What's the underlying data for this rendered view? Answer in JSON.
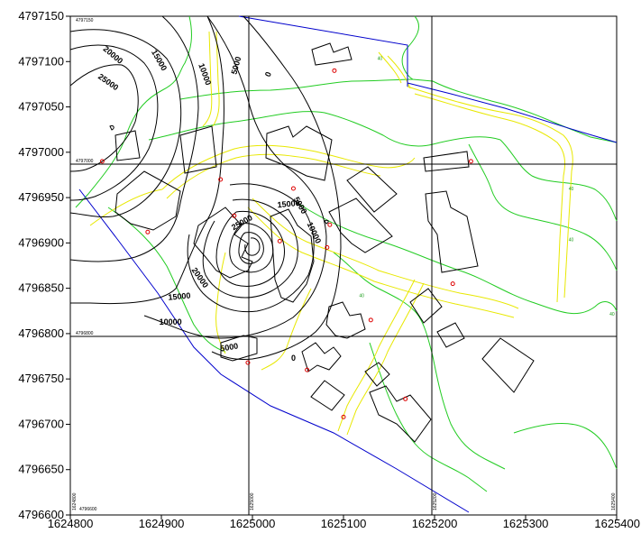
{
  "axes": {
    "y_labels": [
      "4797150",
      "4797100",
      "4797050",
      "4797000",
      "4796950",
      "4796900",
      "4796850",
      "4796800",
      "4796750",
      "4796700",
      "4796650",
      "4796600"
    ],
    "x_labels": [
      "1624800",
      "1624900",
      "1625000",
      "1625100",
      "1625200",
      "1625300",
      "1625400"
    ],
    "x_range": [
      1624800,
      1625400
    ],
    "y_range": [
      4796600,
      4797150
    ]
  },
  "grid_labels": {
    "top_left": "4797150",
    "mid_upper": "4797000",
    "mid_lower": "4796800",
    "bottom_left": "4796600",
    "vertical": [
      "1624800",
      "1625000",
      "1625200",
      "1625400"
    ]
  },
  "contour_labels": [
    {
      "text": "0",
      "x": 1625020,
      "y": 4797085,
      "rot": -70
    },
    {
      "text": "0",
      "x": 1625045,
      "y": 4796770,
      "rot": 0
    },
    {
      "text": "5000",
      "x": 1624985,
      "y": 4797095,
      "rot": -75
    },
    {
      "text": "5000",
      "x": 1625050,
      "y": 4796940,
      "rot": 60
    },
    {
      "text": "5000",
      "x": 1624975,
      "y": 4796782,
      "rot": -10
    },
    {
      "text": "10000",
      "x": 1624945,
      "y": 4797085,
      "rot": 70
    },
    {
      "text": "10000",
      "x": 1625065,
      "y": 4796910,
      "rot": 65
    },
    {
      "text": "10000",
      "x": 1624910,
      "y": 4796810,
      "rot": 0
    },
    {
      "text": "15000",
      "x": 1624895,
      "y": 4797100,
      "rot": 60
    },
    {
      "text": "15000",
      "x": 1625040,
      "y": 4796940,
      "rot": -5
    },
    {
      "text": "15000",
      "x": 1624920,
      "y": 4796838,
      "rot": -5
    },
    {
      "text": "20000",
      "x": 1624845,
      "y": 4797105,
      "rot": 40
    },
    {
      "text": "20000",
      "x": 1624940,
      "y": 4796860,
      "rot": 55
    },
    {
      "text": "25000",
      "x": 1624840,
      "y": 4797075,
      "rot": 35
    },
    {
      "text": "25000",
      "x": 1624990,
      "y": 4796920,
      "rot": -30
    }
  ],
  "green_labels": [
    {
      "text": "40",
      "x": 1625140,
      "y": 4797102
    },
    {
      "text": "40",
      "x": 1625350,
      "y": 4796958
    },
    {
      "text": "40",
      "x": 1625350,
      "y": 4796902
    },
    {
      "text": "40",
      "x": 1625395,
      "y": 4796820
    },
    {
      "text": "40",
      "x": 1625120,
      "y": 4796840
    }
  ],
  "sample_points": [
    {
      "x": 1625090,
      "y": 4797090
    },
    {
      "x": 1624835,
      "y": 4796990
    },
    {
      "x": 1624965,
      "y": 4796970
    },
    {
      "x": 1624885,
      "y": 4796912
    },
    {
      "x": 1624980,
      "y": 4796930
    },
    {
      "x": 1625045,
      "y": 4796960
    },
    {
      "x": 1625085,
      "y": 4796920
    },
    {
      "x": 1625082,
      "y": 4796895
    },
    {
      "x": 1625030,
      "y": 4796902
    },
    {
      "x": 1625130,
      "y": 4796815
    },
    {
      "x": 1625240,
      "y": 4796990
    },
    {
      "x": 1625220,
      "y": 4796855
    },
    {
      "x": 1624995,
      "y": 4796768
    },
    {
      "x": 1625060,
      "y": 4796760
    },
    {
      "x": 1625100,
      "y": 4796708
    },
    {
      "x": 1625168,
      "y": 4796728
    }
  ],
  "colors": {
    "grid": "#000000",
    "contour": "#000000",
    "water": "#0000cc",
    "terrain": "#22cc22",
    "road": "#e8e800",
    "building": "#000000",
    "point": "#dd0000"
  }
}
